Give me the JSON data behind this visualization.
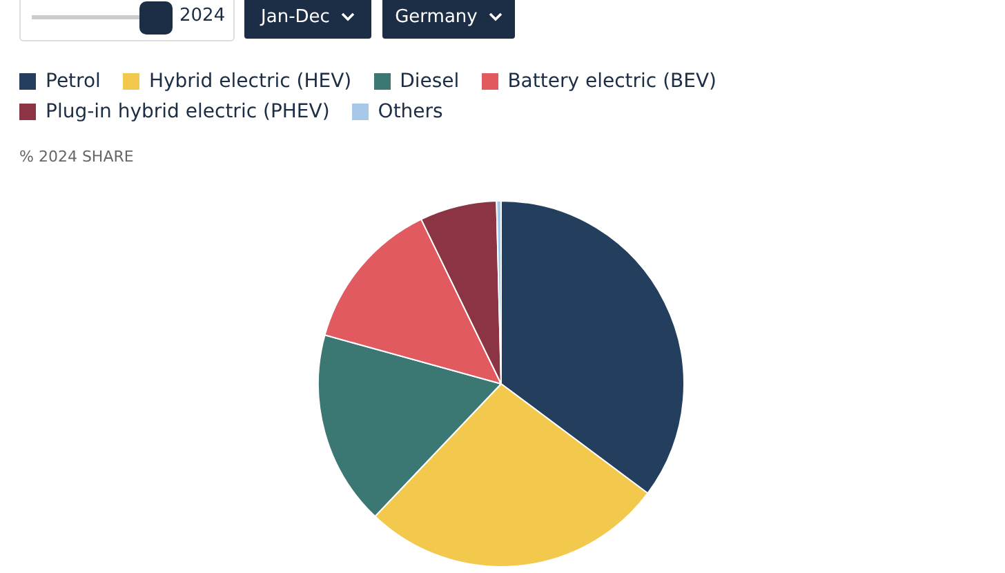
{
  "chart_data": {
    "type": "pie",
    "subtitle": "% 2024 SHARE",
    "annotations": [
      "2024",
      "Jan-Dec",
      "Germany"
    ],
    "categories": [
      "Petrol",
      "Hybrid electric (HEV)",
      "Diesel",
      "Battery electric (BEV)",
      "Plug-in hybrid electric (PHEV)",
      "Others"
    ],
    "values": [
      35.2,
      26.9,
      17.2,
      13.5,
      6.8,
      0.4
    ],
    "colors": [
      "#243f5e",
      "#f2c94c",
      "#3b7773",
      "#e05a5f",
      "#8b3443",
      "#a7c8e8"
    ],
    "legend": "top"
  }
}
